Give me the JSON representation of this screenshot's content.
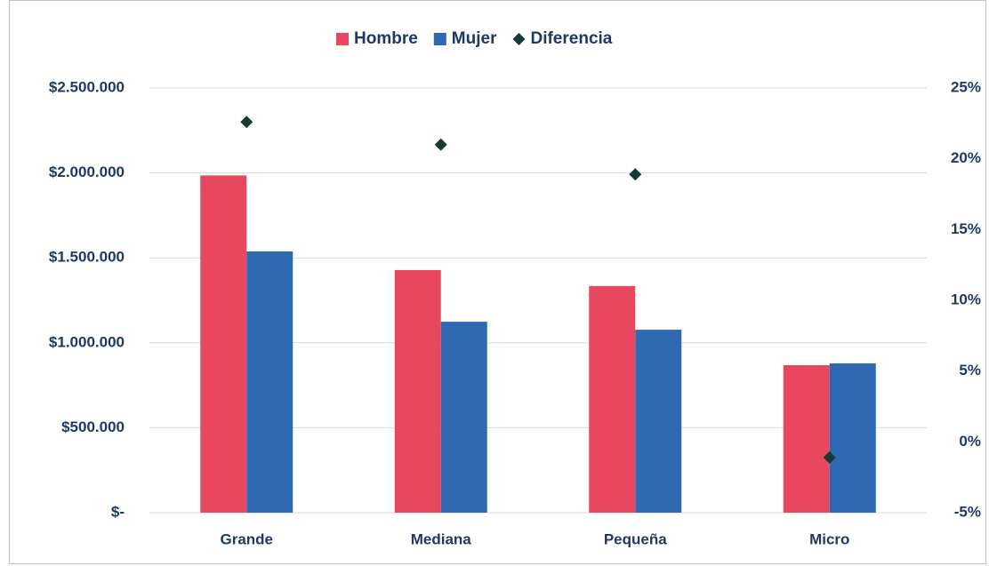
{
  "chart_data": {
    "type": "bar",
    "categories": [
      "Grande",
      "Mediana",
      "Pequeña",
      "Micro"
    ],
    "series": [
      {
        "name": "Hombre",
        "color": "#e8485f",
        "values": [
          1985000,
          1428000,
          1334000,
          868000
        ]
      },
      {
        "name": "Mujer",
        "color": "#2f69b1",
        "values": [
          1538000,
          1124000,
          1077000,
          879000
        ]
      },
      {
        "name": "Diferencia",
        "color": "#163a36",
        "type": "scatter",
        "axis": "y2",
        "values": [
          22.6,
          21.0,
          18.9,
          -1.1
        ]
      }
    ],
    "ylim": [
      0,
      2500000
    ],
    "yticks": [
      {
        "value": 0,
        "label": "$-"
      },
      {
        "value": 500000,
        "label": "$500.000"
      },
      {
        "value": 1000000,
        "label": "$1.000.000"
      },
      {
        "value": 1500000,
        "label": "$1.500.000"
      },
      {
        "value": 2000000,
        "label": "$2.000.000"
      },
      {
        "value": 2500000,
        "label": "$2.500.000"
      }
    ],
    "y2lim": [
      -5,
      25
    ],
    "y2ticks": [
      {
        "value": -5,
        "label": "-5%"
      },
      {
        "value": 0,
        "label": "0%"
      },
      {
        "value": 5,
        "label": "5%"
      },
      {
        "value": 10,
        "label": "10%"
      },
      {
        "value": 15,
        "label": "15%"
      },
      {
        "value": 20,
        "label": "20%"
      },
      {
        "value": 25,
        "label": "25%"
      }
    ],
    "grid": true,
    "legend": "top"
  }
}
